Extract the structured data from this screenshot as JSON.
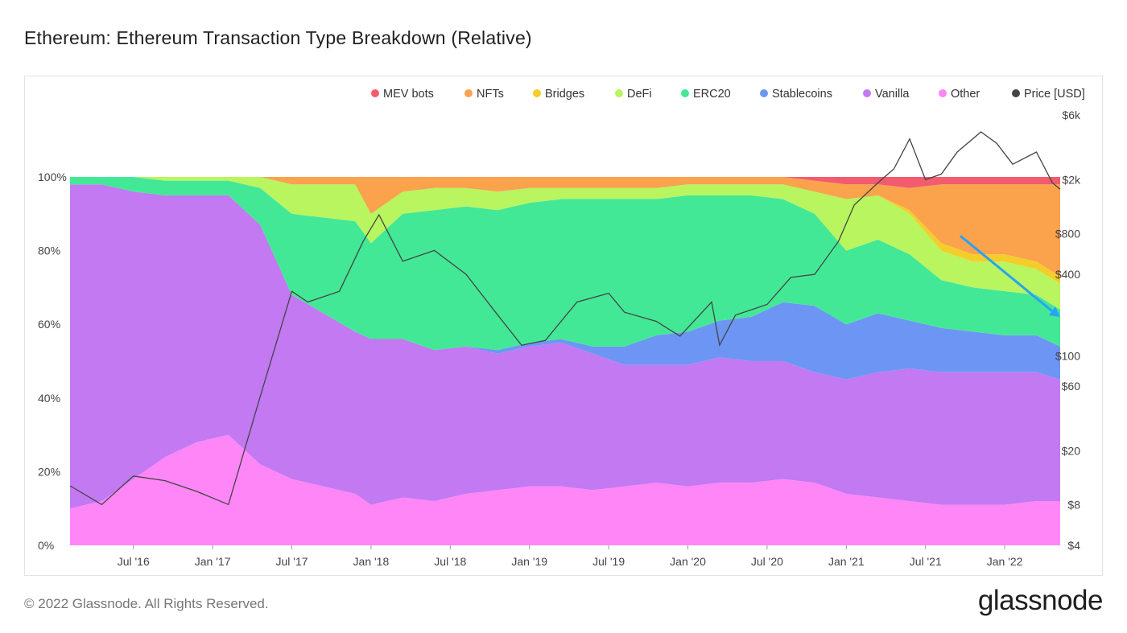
{
  "title": "Ethereum: Ethereum Transaction Type Breakdown (Relative)",
  "footer": {
    "copyright": "© 2022 Glassnode. All Rights Reserved.",
    "brand": "glassnode"
  },
  "watermark": "glassnode",
  "colors": {
    "MEV bots": "#f25c6e",
    "NFTs": "#fba24d",
    "Bridges": "#f4cd2a",
    "DeFi": "#b8f55f",
    "ERC20": "#43e897",
    "Stablecoins": "#6d96f4",
    "Vanilla": "#c279f2",
    "Other": "#ff86f6",
    "Price [USD]": "#444444",
    "arrow": "#2aa3f2"
  },
  "chart_data": {
    "type": "area",
    "stacked": "percent",
    "title": "Ethereum: Ethereum Transaction Type Breakdown (Relative)",
    "x_labels": [
      "Jul '16",
      "Jan '17",
      "Jul '17",
      "Jan '18",
      "Jul '18",
      "Jan '19",
      "Jul '19",
      "Jan '20",
      "Jul '20",
      "Jan '21",
      "Jul '21",
      "Jan '22"
    ],
    "x_range": [
      2016.1,
      2022.35
    ],
    "y_left": {
      "ticks": [
        "0%",
        "20%",
        "40%",
        "60%",
        "80%",
        "100%"
      ],
      "range": [
        0,
        100
      ]
    },
    "y_right": {
      "scale": "log",
      "ticks": [
        "$4",
        "$8",
        "$20",
        "$60",
        "$100",
        "$400",
        "$800",
        "$2k",
        "$6k"
      ],
      "range": [
        4,
        6000
      ]
    },
    "legend": [
      "MEV bots",
      "NFTs",
      "Bridges",
      "DeFi",
      "ERC20",
      "Stablecoins",
      "Vanilla",
      "Other",
      "Price [USD]"
    ],
    "legend_position": "top-right",
    "x": [
      2016.1,
      2016.3,
      2016.5,
      2016.7,
      2016.9,
      2017.1,
      2017.3,
      2017.5,
      2017.7,
      2017.9,
      2018.0,
      2018.2,
      2018.4,
      2018.6,
      2018.8,
      2019.0,
      2019.2,
      2019.4,
      2019.6,
      2019.8,
      2020.0,
      2020.2,
      2020.4,
      2020.6,
      2020.8,
      2021.0,
      2021.2,
      2021.4,
      2021.6,
      2021.8,
      2022.0,
      2022.2,
      2022.35
    ],
    "series": [
      {
        "name": "Other",
        "values": [
          10,
          12,
          18,
          24,
          28,
          30,
          22,
          18,
          16,
          14,
          11,
          13,
          12,
          14,
          15,
          16,
          16,
          15,
          16,
          17,
          16,
          17,
          17,
          18,
          17,
          14,
          13,
          12,
          11,
          11,
          11,
          12,
          12
        ]
      },
      {
        "name": "Vanilla",
        "values": [
          88,
          86,
          78,
          71,
          67,
          65,
          65,
          50,
          47,
          44,
          45,
          43,
          41,
          40,
          37,
          38,
          39,
          37,
          33,
          32,
          33,
          34,
          33,
          32,
          30,
          31,
          34,
          36,
          36,
          36,
          36,
          35,
          33
        ]
      },
      {
        "name": "Stablecoins",
        "values": [
          0,
          0,
          0,
          0,
          0,
          0,
          0,
          0,
          0,
          0,
          0,
          0,
          0,
          0,
          1,
          1,
          1,
          2,
          5,
          8,
          9,
          10,
          12,
          16,
          18,
          15,
          16,
          13,
          12,
          11,
          10,
          10,
          9
        ]
      },
      {
        "name": "ERC20",
        "values": [
          2,
          2,
          4,
          4,
          4,
          4,
          10,
          22,
          26,
          30,
          26,
          34,
          38,
          38,
          38,
          38,
          38,
          40,
          40,
          37,
          37,
          34,
          33,
          28,
          25,
          20,
          20,
          18,
          13,
          12,
          12,
          11,
          10
        ]
      },
      {
        "name": "DeFi",
        "values": [
          0,
          0,
          0,
          1,
          1,
          1,
          3,
          8,
          9,
          10,
          8,
          6,
          6,
          5,
          5,
          4,
          3,
          3,
          3,
          3,
          3,
          3,
          3,
          4,
          6,
          14,
          12,
          11,
          8,
          7,
          8,
          7,
          7
        ]
      },
      {
        "name": "Bridges",
        "values": [
          0,
          0,
          0,
          0,
          0,
          0,
          0,
          0,
          0,
          0,
          0,
          0,
          0,
          0,
          0,
          0,
          0,
          0,
          0,
          0,
          0,
          0,
          0,
          0,
          0,
          0,
          0,
          1,
          2,
          2,
          2,
          2,
          2
        ]
      },
      {
        "name": "NFTs",
        "values": [
          0,
          0,
          0,
          0,
          0,
          0,
          0,
          2,
          2,
          2,
          10,
          4,
          3,
          3,
          4,
          3,
          3,
          3,
          3,
          3,
          2,
          2,
          2,
          2,
          3,
          4,
          3,
          6,
          16,
          19,
          19,
          21,
          25
        ]
      },
      {
        "name": "MEV bots",
        "values": [
          0,
          0,
          0,
          0,
          0,
          0,
          0,
          0,
          0,
          0,
          0,
          0,
          0,
          0,
          0,
          0,
          0,
          0,
          0,
          0,
          0,
          0,
          0,
          0,
          1,
          2,
          2,
          3,
          2,
          2,
          2,
          2,
          2
        ]
      }
    ],
    "price_usd": {
      "x": [
        2016.1,
        2016.3,
        2016.5,
        2016.7,
        2016.9,
        2017.1,
        2017.3,
        2017.5,
        2017.6,
        2017.8,
        2017.95,
        2018.05,
        2018.2,
        2018.4,
        2018.6,
        2018.8,
        2018.95,
        2019.1,
        2019.3,
        2019.5,
        2019.6,
        2019.8,
        2019.95,
        2020.15,
        2020.2,
        2020.3,
        2020.5,
        2020.65,
        2020.8,
        2020.95,
        2021.05,
        2021.2,
        2021.3,
        2021.4,
        2021.5,
        2021.6,
        2021.7,
        2021.85,
        2021.95,
        2022.05,
        2022.2,
        2022.3,
        2022.35
      ],
      "values": [
        11,
        8,
        13,
        12,
        10,
        8,
        50,
        300,
        250,
        300,
        700,
        1100,
        500,
        600,
        400,
        200,
        120,
        130,
        250,
        290,
        210,
        180,
        140,
        250,
        120,
        200,
        240,
        380,
        400,
        700,
        1300,
        1900,
        2400,
        4000,
        2000,
        2200,
        3200,
        4500,
        3700,
        2600,
        3200,
        1900,
        1700
      ]
    },
    "annotation": "arrow pointing down across ERC20 share (2021.7 to 2022.35)"
  }
}
